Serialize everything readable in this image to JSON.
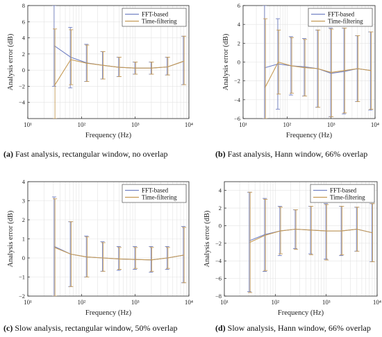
{
  "captions": [
    {
      "letter": "(a)",
      "text": " Fast analysis, rectangular window, no overlap"
    },
    {
      "letter": "(b)",
      "text": " Fast analysis, Hann window, 66% overlap"
    },
    {
      "letter": "(c)",
      "text": " Slow analysis, rectangular window, 50% overlap"
    },
    {
      "letter": "(d)",
      "text": " Slow analysis, Hann window, 66% overlap"
    }
  ],
  "colors": {
    "fft": "#7382c4",
    "time": "#c59a55",
    "grid": "#e3e3e3",
    "axis": "#222222"
  },
  "chart_data": [
    {
      "type": "line",
      "xlabel": "Frequency (Hz)",
      "ylabel": "Analysis error (dB)",
      "xscale": "log",
      "xlim": [
        10,
        10000
      ],
      "ylim": [
        -6,
        8
      ],
      "yticks": [
        -4,
        -2,
        0,
        2,
        4,
        6,
        8
      ],
      "xticks": [
        10,
        100,
        1000,
        10000
      ],
      "xtick_labels": [
        "10¹",
        "10²",
        "10³",
        "10⁴"
      ],
      "legend": "top-right",
      "grid": true,
      "x": [
        31.5,
        63,
        125,
        250,
        500,
        1000,
        2000,
        4000,
        8000
      ],
      "series": [
        {
          "name": "FFT-based",
          "values": [
            3.0,
            1.6,
            0.9,
            0.6,
            0.35,
            0.25,
            0.25,
            0.4,
            1.1
          ],
          "lower": [
            -2.0,
            -2.2,
            -1.4,
            -1.1,
            -0.8,
            -0.5,
            -0.5,
            -0.6,
            -1.8
          ],
          "upper": [
            8.0,
            5.3,
            3.2,
            2.3,
            1.6,
            1.0,
            1.0,
            1.6,
            4.2
          ]
        },
        {
          "name": "Time-filtering",
          "values": [
            -1.9,
            1.3,
            0.85,
            0.6,
            0.35,
            0.25,
            0.25,
            0.4,
            1.1
          ],
          "lower": [
            -6.0,
            -1.8,
            -1.4,
            -1.1,
            -0.8,
            -0.5,
            -0.5,
            -0.6,
            -1.8
          ],
          "upper": [
            5.1,
            5.0,
            3.1,
            2.3,
            1.6,
            1.0,
            1.0,
            1.6,
            4.2
          ]
        }
      ]
    },
    {
      "type": "line",
      "xlabel": "Frequency (Hz)",
      "ylabel": "Analysis error (dB)",
      "xscale": "log",
      "xlim": [
        10,
        10000
      ],
      "ylim": [
        -6,
        6
      ],
      "yticks": [
        -6,
        -4,
        -2,
        0,
        2,
        4,
        6
      ],
      "xticks": [
        10,
        100,
        1000,
        10000
      ],
      "xtick_labels": [
        "10¹",
        "10²",
        "10³",
        "10⁴"
      ],
      "legend": "top-right",
      "grid": true,
      "x": [
        31.5,
        63,
        125,
        250,
        500,
        1000,
        2000,
        4000,
        8000
      ],
      "series": [
        {
          "name": "FFT-based",
          "values": [
            -0.6,
            -0.2,
            -0.4,
            -0.5,
            -0.7,
            -1.2,
            -1.0,
            -0.7,
            -0.9
          ],
          "lower": [
            -6.0,
            -5.0,
            -3.5,
            -3.6,
            -4.8,
            -5.8,
            -5.5,
            -4.2,
            -5.1
          ],
          "upper": [
            6.0,
            4.6,
            2.7,
            2.5,
            3.4,
            3.6,
            3.6,
            2.8,
            3.2
          ]
        },
        {
          "name": "Time-filtering",
          "values": [
            -2.7,
            0.0,
            -0.4,
            -0.6,
            -0.7,
            -1.1,
            -0.9,
            -0.7,
            -0.9
          ],
          "lower": [
            -6.0,
            -3.4,
            -3.3,
            -3.6,
            -4.8,
            -5.8,
            -5.4,
            -4.2,
            -5.0
          ],
          "upper": [
            4.6,
            3.4,
            2.6,
            2.4,
            3.4,
            3.5,
            3.6,
            2.8,
            3.2
          ]
        }
      ]
    },
    {
      "type": "line",
      "xlabel": "Frequency (Hz)",
      "ylabel": "Analysis error (dB)",
      "xscale": "log",
      "xlim": [
        10,
        10000
      ],
      "ylim": [
        -2,
        4
      ],
      "yticks": [
        -2,
        -1,
        0,
        1,
        2,
        3,
        4
      ],
      "xticks": [
        10,
        100,
        1000,
        10000
      ],
      "xtick_labels": [
        "10¹",
        "10²",
        "10³",
        "10⁴"
      ],
      "legend": "top-right",
      "grid": true,
      "x": [
        31.5,
        63,
        125,
        250,
        500,
        1000,
        2000,
        4000,
        8000
      ],
      "series": [
        {
          "name": "FFT-based",
          "values": [
            0.6,
            0.2,
            0.05,
            0.0,
            -0.05,
            -0.08,
            -0.1,
            0.0,
            0.15
          ],
          "lower": [
            -2.0,
            -1.5,
            -1.0,
            -0.7,
            -0.65,
            -0.6,
            -0.75,
            -0.6,
            -1.3
          ],
          "upper": [
            3.2,
            1.9,
            1.15,
            0.85,
            0.6,
            0.6,
            0.6,
            0.6,
            1.65
          ]
        },
        {
          "name": "Time-filtering",
          "values": [
            0.55,
            0.2,
            0.05,
            0.0,
            -0.05,
            -0.08,
            -0.1,
            0.0,
            0.15
          ],
          "lower": [
            -2.0,
            -1.5,
            -1.0,
            -0.7,
            -0.6,
            -0.55,
            -0.7,
            -0.55,
            -1.3
          ],
          "upper": [
            3.1,
            1.9,
            1.1,
            0.8,
            0.55,
            0.55,
            0.55,
            0.55,
            1.6
          ]
        }
      ]
    },
    {
      "type": "line",
      "xlabel": "Frequency (Hz)",
      "ylabel": "Analysis error (dB)",
      "xscale": "log",
      "xlim": [
        10,
        10000
      ],
      "ylim": [
        -8,
        5
      ],
      "yticks": [
        -8,
        -6,
        -4,
        -2,
        0,
        2,
        4
      ],
      "xticks": [
        10,
        100,
        1000,
        10000
      ],
      "xtick_labels": [
        "10¹",
        "10²",
        "10³",
        "10⁴"
      ],
      "legend": "top-right",
      "grid": true,
      "x": [
        31.5,
        63,
        125,
        250,
        500,
        1000,
        2000,
        4000,
        8000
      ],
      "series": [
        {
          "name": "FFT-based",
          "values": [
            -1.7,
            -1.0,
            -0.6,
            -0.4,
            -0.5,
            -0.6,
            -0.6,
            -0.4,
            -0.8
          ],
          "lower": [
            -7.5,
            -5.2,
            -3.4,
            -2.6,
            -3.2,
            -3.8,
            -3.4,
            -2.9,
            -4.1
          ],
          "upper": [
            3.8,
            3.1,
            2.2,
            1.8,
            2.2,
            2.5,
            2.2,
            2.1,
            2.5
          ]
        },
        {
          "name": "Time-filtering",
          "values": [
            -1.9,
            -1.1,
            -0.6,
            -0.4,
            -0.5,
            -0.6,
            -0.6,
            -0.4,
            -0.8
          ],
          "lower": [
            -7.6,
            -5.1,
            -3.2,
            -2.7,
            -3.3,
            -3.9,
            -3.3,
            -2.9,
            -4.1
          ],
          "upper": [
            3.8,
            3.0,
            2.1,
            1.8,
            2.2,
            2.4,
            2.2,
            2.1,
            2.5
          ]
        }
      ]
    }
  ]
}
